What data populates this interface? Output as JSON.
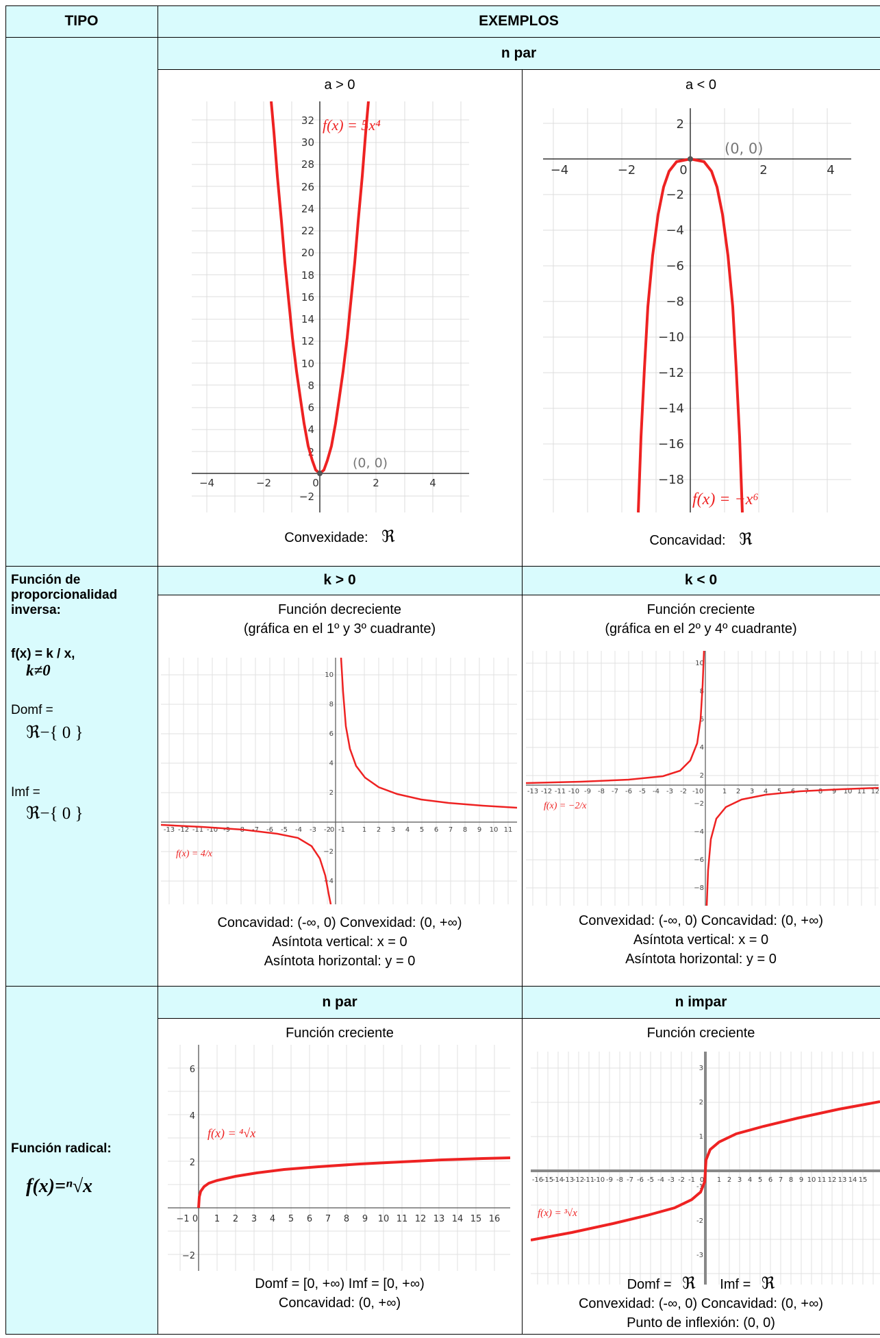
{
  "header": {
    "tipo": "TIPO",
    "exemplos": "EXEMPLOS"
  },
  "row1": {
    "subheader": "n par",
    "col1": {
      "label": "a > 0",
      "formula": "f(x) = 5x⁴",
      "point": "(0, 0)",
      "caption_label": "Convexidade:",
      "caption_value": "ℜ",
      "y_ticks": [
        "32",
        "30",
        "28",
        "26",
        "24",
        "22",
        "20",
        "18",
        "16",
        "14",
        "12",
        "10",
        "8",
        "6",
        "4",
        "2",
        "−2"
      ],
      "x_ticks": [
        "−4",
        "−2",
        "0",
        "2",
        "4"
      ]
    },
    "col2": {
      "label": "a < 0",
      "formula": "f(x) = −x⁶",
      "point": "(0, 0)",
      "caption_label": "Concavidad:",
      "caption_value": "ℜ",
      "y_ticks": [
        "2",
        "−2",
        "−4",
        "−6",
        "−8",
        "−10",
        "−12",
        "−14",
        "−16",
        "−18"
      ],
      "x_ticks": [
        "−4",
        "−2",
        "0",
        "2",
        "4"
      ]
    }
  },
  "row2": {
    "type_title_1": "Función de",
    "type_title_2": "proporcionalidad",
    "type_title_3": "inversa:",
    "type_formula": "f(x) = k / x,",
    "type_condition": "k≠0",
    "domf_label": "Domf =",
    "domf_value": "ℜ−{ 0 }",
    "imf_label": "Imf =",
    "imf_value": "ℜ−{ 0 }",
    "col1": {
      "subheader": "k > 0",
      "title1": "Función decreciente",
      "title2": "(gráfica en el 1º y 3º cuadrante)",
      "formula": "f(x) = 4/x",
      "cap1": "Concavidad: (-∞, 0)  Convexidad: (0, +∞)",
      "cap2": "Asíntota vertical: x = 0",
      "cap3": "Asíntota horizontal: y = 0"
    },
    "col2": {
      "subheader": "k < 0",
      "title1": "Función creciente",
      "title2": "(gráfica en el 2º y 4º cuadrante)",
      "formula": "f(x) = −2/x",
      "cap1": "Convexidad: (-∞, 0)  Concavidad: (0, +∞)",
      "cap2": "Asíntota vertical: x = 0",
      "cap3": "Asíntota horizontal: y = 0"
    }
  },
  "row3": {
    "type_title": "Función radical:",
    "type_formula": "f(x)=ⁿ√x",
    "col1": {
      "subheader": "n par",
      "title": "Función creciente",
      "formula": "f(x) = ⁴√x",
      "cap1": "Domf = [0, +∞)     Imf = [0, +∞)",
      "cap2": "Concavidad: (0, +∞)"
    },
    "col2": {
      "subheader": "n impar",
      "title": "Función creciente",
      "formula": "f(x) = ³√x",
      "cap1_a": "Domf =",
      "cap1_b": "ℜ",
      "cap1_c": "Imf =",
      "cap1_d": "ℜ",
      "cap2": "Convexidad: (-∞, 0)  Concavidad: (0, +∞)",
      "cap3": "Punto de inflexión: (0, 0)"
    }
  },
  "colors": {
    "cyan": "#d9fbfd",
    "curve": "#ee2222",
    "grid": "#d0d0d0"
  }
}
